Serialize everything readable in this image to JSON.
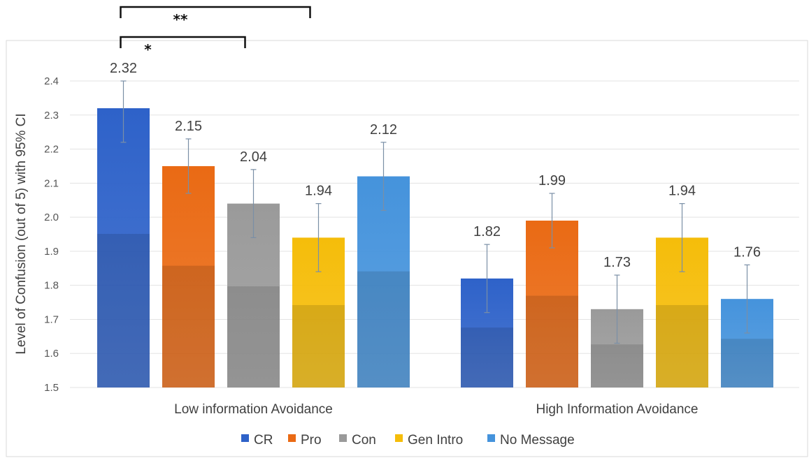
{
  "chart_data": {
    "type": "bar",
    "ylabel": "Level of Confusion (out of 5) with 95% CI",
    "xlabel": "",
    "ylim": [
      1.5,
      2.4
    ],
    "yticks": [
      "1.5",
      "1.6",
      "1.7",
      "1.8",
      "1.9",
      "2.0",
      "2.1",
      "2.2",
      "2.3",
      "2.4"
    ],
    "grid": true,
    "legend_position": "bottom",
    "categories": [
      "Low information Avoidance",
      "High Information Avoidance"
    ],
    "series": [
      {
        "name": "CR",
        "color": "#2e62c9",
        "values": [
          2.32,
          1.82
        ],
        "labels": [
          "2.32",
          "1.82"
        ],
        "ci_low": [
          2.22,
          1.72
        ],
        "ci_high": [
          2.4,
          1.92
        ]
      },
      {
        "name": "Pro",
        "color": "#ea6a14",
        "values": [
          2.15,
          1.99
        ],
        "labels": [
          "2.15",
          "1.99"
        ],
        "ci_low": [
          2.07,
          1.91
        ],
        "ci_high": [
          2.23,
          2.07
        ]
      },
      {
        "name": "Con",
        "color": "#9a9a9a",
        "values": [
          2.04,
          1.73
        ],
        "labels": [
          "2.04",
          "1.73"
        ],
        "ci_low": [
          1.94,
          1.63
        ],
        "ci_high": [
          2.14,
          1.83
        ]
      },
      {
        "name": "Gen Intro",
        "color": "#f5bd0a",
        "values": [
          1.94,
          1.94
        ],
        "labels": [
          "1.94",
          "1.94"
        ],
        "ci_low": [
          1.84,
          1.84
        ],
        "ci_high": [
          2.04,
          2.04
        ]
      },
      {
        "name": "No Message",
        "color": "#4593dc",
        "values": [
          2.12,
          1.76
        ],
        "labels": [
          "2.12",
          "1.76"
        ],
        "ci_low": [
          2.02,
          1.66
        ],
        "ci_high": [
          2.22,
          1.86
        ]
      }
    ],
    "annotations": [
      {
        "text": "**",
        "from_series": "CR",
        "to_series": "Gen Intro",
        "category": "Low information Avoidance"
      },
      {
        "text": "*",
        "from_series": "CR",
        "to_series": "Con",
        "category": "Low information Avoidance"
      }
    ]
  }
}
